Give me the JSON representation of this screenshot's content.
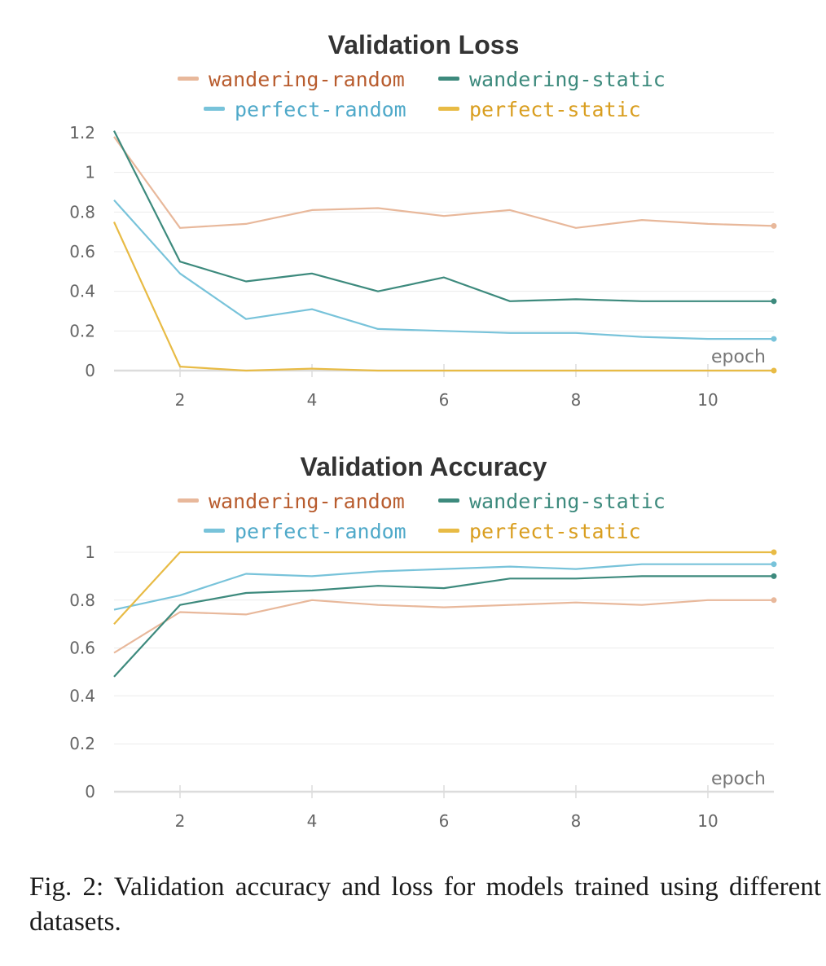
{
  "chart_data": [
    {
      "type": "line",
      "title": "Validation Loss",
      "xlabel": "epoch",
      "ylabel": "",
      "x": [
        1,
        2,
        3,
        4,
        5,
        6,
        7,
        8,
        9,
        10,
        11
      ],
      "xticks": [
        2,
        4,
        6,
        8,
        10
      ],
      "xlim": [
        1,
        11
      ],
      "yticks": [
        0,
        0.2,
        0.4,
        0.6,
        0.8,
        1,
        1.2
      ],
      "ytick_labels": [
        "0",
        "0.2",
        "0.4",
        "0.6",
        "0.8",
        "1",
        "1.2"
      ],
      "ylim": [
        0,
        1.2
      ],
      "grid": true,
      "legend_position": "top-center",
      "series": [
        {
          "name": "wandering-random",
          "color": "#e8b89b",
          "label_color": "#b85c2e",
          "values": [
            1.18,
            0.72,
            0.74,
            0.81,
            0.82,
            0.78,
            0.81,
            0.72,
            0.76,
            0.74,
            0.73
          ]
        },
        {
          "name": "wandering-static",
          "color": "#3d8a7d",
          "label_color": "#3d8a7d",
          "values": [
            1.21,
            0.55,
            0.45,
            0.49,
            0.4,
            0.47,
            0.35,
            0.36,
            0.35,
            0.35,
            0.35
          ]
        },
        {
          "name": "perfect-random",
          "color": "#78c3da",
          "label_color": "#4fa9c9",
          "values": [
            0.86,
            0.49,
            0.26,
            0.31,
            0.21,
            0.2,
            0.19,
            0.19,
            0.17,
            0.16,
            0.16
          ]
        },
        {
          "name": "perfect-static",
          "color": "#e8bb45",
          "label_color": "#d99e1f",
          "values": [
            0.75,
            0.02,
            0.0,
            0.01,
            0.0,
            0.0,
            0.0,
            0.0,
            0.0,
            0.0,
            0.0
          ]
        }
      ]
    },
    {
      "type": "line",
      "title": "Validation Accuracy",
      "xlabel": "epoch",
      "ylabel": "",
      "x": [
        1,
        2,
        3,
        4,
        5,
        6,
        7,
        8,
        9,
        10,
        11
      ],
      "xticks": [
        2,
        4,
        6,
        8,
        10
      ],
      "xlim": [
        1,
        11
      ],
      "yticks": [
        0,
        0.2,
        0.4,
        0.6,
        0.8,
        1
      ],
      "ytick_labels": [
        "0",
        "0.2",
        "0.4",
        "0.6",
        "0.8",
        "1"
      ],
      "ylim": [
        0,
        1
      ],
      "grid": true,
      "legend_position": "top-center",
      "series": [
        {
          "name": "wandering-random",
          "color": "#e8b89b",
          "label_color": "#b85c2e",
          "values": [
            0.58,
            0.75,
            0.74,
            0.8,
            0.78,
            0.77,
            0.78,
            0.79,
            0.78,
            0.8,
            0.8
          ]
        },
        {
          "name": "wandering-static",
          "color": "#3d8a7d",
          "label_color": "#3d8a7d",
          "values": [
            0.48,
            0.78,
            0.83,
            0.84,
            0.86,
            0.85,
            0.89,
            0.89,
            0.9,
            0.9,
            0.9
          ]
        },
        {
          "name": "perfect-random",
          "color": "#78c3da",
          "label_color": "#4fa9c9",
          "values": [
            0.76,
            0.82,
            0.91,
            0.9,
            0.92,
            0.93,
            0.94,
            0.93,
            0.95,
            0.95,
            0.95
          ]
        },
        {
          "name": "perfect-static",
          "color": "#e8bb45",
          "label_color": "#d99e1f",
          "values": [
            0.7,
            1.0,
            1.0,
            1.0,
            1.0,
            1.0,
            1.0,
            1.0,
            1.0,
            1.0,
            1.0
          ]
        }
      ]
    }
  ],
  "caption": "Fig. 2: Validation accuracy and loss for models trained using different datasets."
}
